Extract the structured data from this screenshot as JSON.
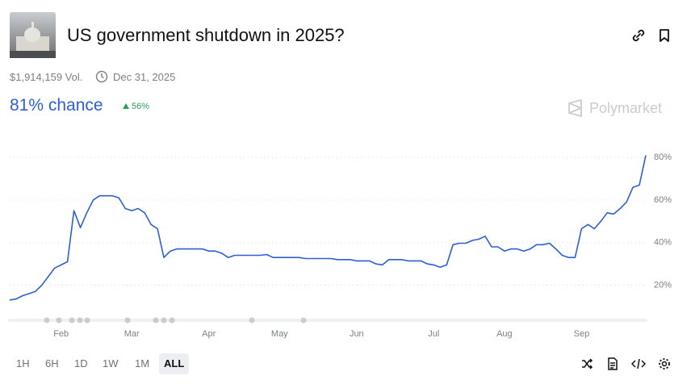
{
  "header": {
    "title": "US government shutdown in 2025?",
    "volume": "$1,914,159 Vol.",
    "end_date": "Dec 31, 2025",
    "chance": "81% chance",
    "change": "56%",
    "brand": "Polymarket"
  },
  "chart_data": {
    "type": "line",
    "color": "#2c5fd4",
    "grid": true,
    "categories": [
      null,
      null,
      null,
      null,
      null,
      null,
      null,
      null,
      "Feb",
      null,
      null,
      null,
      null,
      null,
      null,
      null,
      null,
      null,
      null,
      "Mar",
      null,
      null,
      null,
      null,
      null,
      null,
      null,
      null,
      null,
      null,
      null,
      "Apr",
      null,
      null,
      null,
      null,
      null,
      null,
      null,
      null,
      null,
      null,
      "May",
      null,
      null,
      null,
      null,
      null,
      null,
      null,
      null,
      null,
      null,
      null,
      "Jun",
      null,
      null,
      null,
      null,
      null,
      null,
      null,
      null,
      null,
      null,
      null,
      "Jul",
      null,
      null,
      null,
      null,
      null,
      null,
      null,
      null,
      null,
      null,
      "Aug",
      null,
      null,
      null,
      null,
      null,
      null,
      null,
      null,
      null,
      null,
      null,
      "Sep",
      null,
      null,
      null,
      null,
      null,
      null,
      null,
      null,
      null,
      null
    ],
    "values": [
      13,
      13.5,
      15,
      16,
      17,
      20,
      24,
      28,
      29.5,
      31,
      55,
      47,
      54,
      60,
      62,
      62,
      62,
      61,
      56,
      55,
      56,
      54,
      48.5,
      46.5,
      33,
      36,
      37,
      37,
      37,
      37,
      37,
      36,
      36,
      35,
      33,
      34,
      34,
      34,
      34,
      34,
      34.4,
      33,
      33,
      33,
      33,
      33,
      32.5,
      32.5,
      32.5,
      32.5,
      32.5,
      32,
      32,
      32,
      31.4,
      31.4,
      31.4,
      30,
      29.5,
      32,
      32,
      32,
      31.4,
      31.4,
      31.4,
      30,
      29.5,
      28.4,
      29.5,
      39,
      39.7,
      39.7,
      41,
      41.6,
      43,
      38,
      38,
      36,
      37,
      37,
      36,
      37,
      39,
      39,
      39.7,
      37,
      34,
      33,
      33,
      46.5,
      48.5,
      46.5,
      50,
      54,
      53.4,
      56,
      59,
      66,
      67,
      81
    ],
    "ylim": [
      5,
      85
    ],
    "yticks": [
      {
        "value": 20,
        "label": "20%"
      },
      {
        "value": 40,
        "label": "40%"
      },
      {
        "value": 60,
        "label": "60%"
      },
      {
        "value": 80,
        "label": "80%"
      }
    ]
  },
  "controls": {
    "ranges": [
      "1H",
      "6H",
      "1D",
      "1W",
      "1M",
      "ALL"
    ]
  }
}
